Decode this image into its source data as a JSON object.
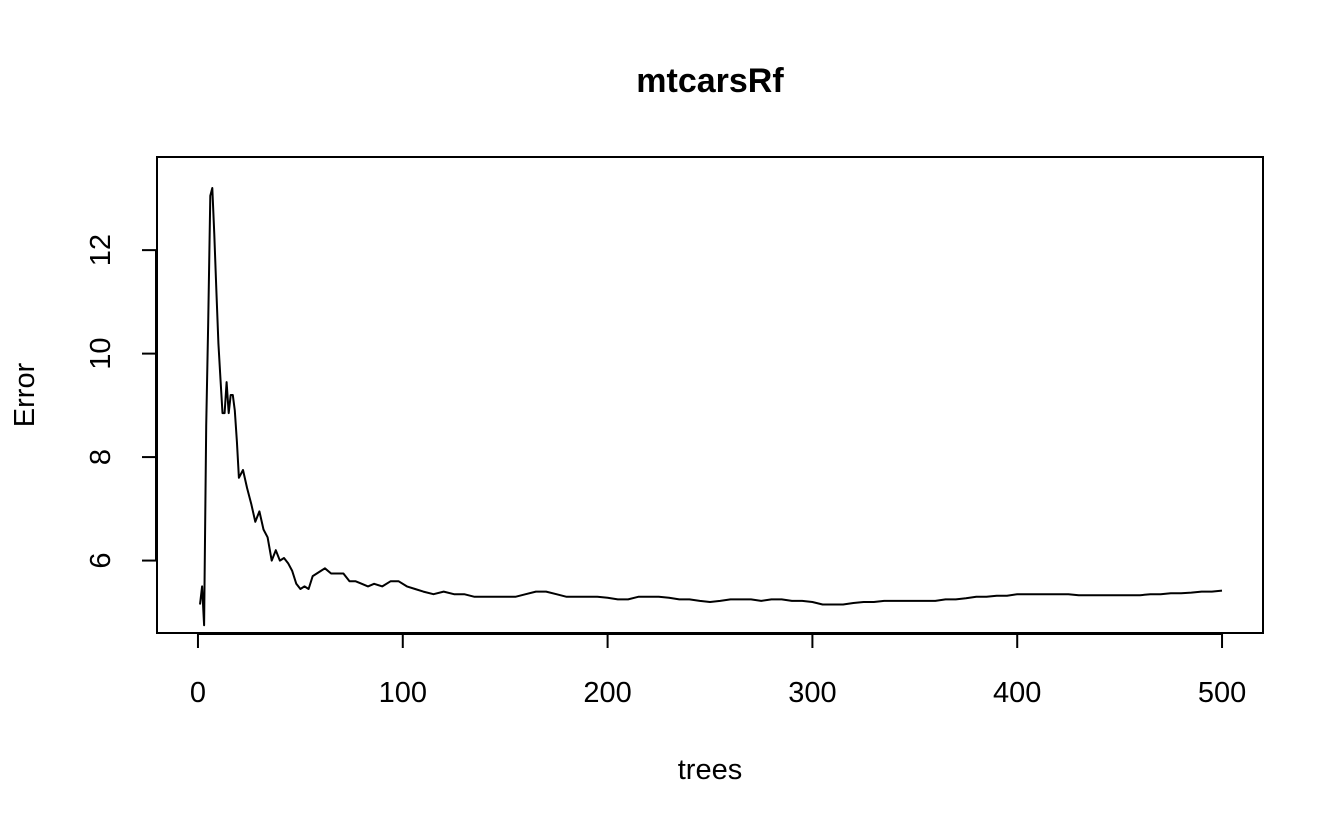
{
  "chart_data": {
    "type": "line",
    "title": "mtcarsRf",
    "xlabel": "trees",
    "ylabel": "Error",
    "xlim": [
      -20,
      520
    ],
    "ylim": [
      4.6,
      13.8
    ],
    "xticks": [
      0,
      100,
      200,
      300,
      400,
      500
    ],
    "yticks": [
      6,
      8,
      10,
      12
    ],
    "grid": false,
    "legend": "none",
    "line_color": "#000000",
    "series": [
      {
        "x": [
          1,
          2,
          3,
          4,
          5,
          6,
          7,
          8,
          9,
          10,
          11,
          12,
          13,
          14,
          15,
          16,
          17,
          18,
          19,
          20,
          22,
          24,
          26,
          28,
          30,
          32,
          34,
          36,
          38,
          40,
          42,
          44,
          46,
          48,
          50,
          52,
          54,
          56,
          58,
          60,
          62,
          65,
          68,
          71,
          74,
          77,
          80,
          83,
          86,
          90,
          94,
          98,
          102,
          106,
          110,
          115,
          120,
          125,
          130,
          135,
          140,
          145,
          150,
          155,
          160,
          165,
          170,
          175,
          180,
          185,
          190,
          195,
          200,
          205,
          210,
          215,
          220,
          225,
          230,
          235,
          240,
          245,
          250,
          255,
          260,
          265,
          270,
          275,
          280,
          285,
          290,
          295,
          300,
          305,
          310,
          315,
          320,
          325,
          330,
          335,
          340,
          345,
          350,
          355,
          360,
          365,
          370,
          375,
          380,
          385,
          390,
          395,
          400,
          405,
          410,
          415,
          420,
          425,
          430,
          435,
          440,
          445,
          450,
          455,
          460,
          465,
          470,
          475,
          480,
          485,
          490,
          495,
          500
        ],
        "y": [
          5.15,
          5.5,
          4.75,
          8.6,
          10.6,
          13.05,
          13.2,
          12.3,
          11.2,
          10.2,
          9.5,
          8.85,
          8.85,
          9.45,
          8.85,
          9.2,
          9.2,
          8.9,
          8.3,
          7.6,
          7.75,
          7.4,
          7.1,
          6.75,
          6.95,
          6.6,
          6.45,
          6.0,
          6.2,
          6.0,
          6.05,
          5.95,
          5.8,
          5.55,
          5.45,
          5.5,
          5.45,
          5.7,
          5.75,
          5.8,
          5.85,
          5.75,
          5.75,
          5.75,
          5.6,
          5.6,
          5.55,
          5.5,
          5.55,
          5.5,
          5.6,
          5.6,
          5.5,
          5.45,
          5.4,
          5.35,
          5.4,
          5.35,
          5.35,
          5.3,
          5.3,
          5.3,
          5.3,
          5.3,
          5.35,
          5.4,
          5.4,
          5.35,
          5.3,
          5.3,
          5.3,
          5.3,
          5.28,
          5.25,
          5.25,
          5.3,
          5.3,
          5.3,
          5.28,
          5.25,
          5.25,
          5.22,
          5.2,
          5.22,
          5.25,
          5.25,
          5.25,
          5.22,
          5.25,
          5.25,
          5.22,
          5.22,
          5.2,
          5.15,
          5.15,
          5.15,
          5.18,
          5.2,
          5.2,
          5.22,
          5.22,
          5.22,
          5.22,
          5.22,
          5.22,
          5.25,
          5.25,
          5.27,
          5.3,
          5.3,
          5.32,
          5.32,
          5.35,
          5.35,
          5.35,
          5.35,
          5.35,
          5.35,
          5.33,
          5.33,
          5.33,
          5.33,
          5.33,
          5.33,
          5.33,
          5.35,
          5.35,
          5.37,
          5.37,
          5.38,
          5.4,
          5.4,
          5.42
        ]
      }
    ]
  }
}
